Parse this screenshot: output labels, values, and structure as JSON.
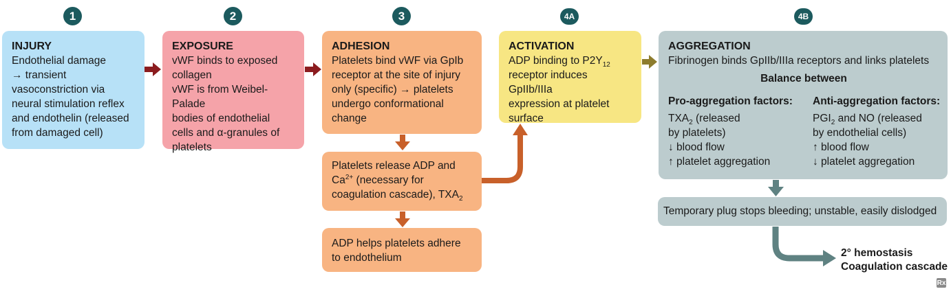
{
  "steps": {
    "s1": "1",
    "s2": "2",
    "s3": "3",
    "s4a": "4A",
    "s4b": "4B"
  },
  "injury": {
    "title": "INJURY",
    "lines": [
      "Endothelial damage",
      "→ transient",
      "vasoconstriction via",
      "neural stimulation reflex",
      "and endothelin (released",
      "from damaged cell)"
    ]
  },
  "exposure": {
    "title": "EXPOSURE",
    "lines": [
      "vWF binds to exposed",
      "collagen",
      "vWF is from Weibel-Palade",
      "bodies of endothelial",
      "cells and α-granules of",
      "platelets"
    ]
  },
  "adhesion": {
    "title": "ADHESION",
    "lines": [
      "Platelets bind vWF via GpIb",
      "receptor at the site of injury",
      "only (specific) → platelets",
      "undergo conformational",
      "change"
    ]
  },
  "release": {
    "line1": "Platelets release ADP and",
    "line2_pre": "Ca",
    "line2_sup": "2+",
    "line2_post": " (necessary for",
    "line3_pre": "coagulation cascade), TXA",
    "line3_sub": "2"
  },
  "adp": {
    "lines": [
      "ADP helps platelets adhere",
      "to endothelium"
    ]
  },
  "activation": {
    "title": "ACTIVATION",
    "line1_pre": "ADP binding to P2Y",
    "line1_sub": "12",
    "line2": "receptor induces GpIIb/IIIa",
    "line3": "expression at platelet",
    "line4": "surface"
  },
  "aggregation": {
    "title": "AGGREGATION",
    "subtitle": "Fibrinogen binds GpIIb/IIIa receptors and links platelets",
    "balance": "Balance between",
    "pro": {
      "heading": "Pro-aggregation factors:",
      "line1_pre": "TXA",
      "line1_sub": "2",
      "line1_post": " (released",
      "line2": "by platelets)",
      "line3": "↓ blood flow",
      "line4": "↑ platelet aggregation"
    },
    "anti": {
      "heading": "Anti-aggregation factors:",
      "line1_pre": "PGI",
      "line1_sub": "2",
      "line1_post": " and NO (released",
      "line2": "by endothelial cells)",
      "line3": "↑ blood flow",
      "line4": "↓ platelet aggregation"
    }
  },
  "plug": {
    "text": "Temporary plug stops bleeding; unstable, easily dislodged"
  },
  "final": {
    "line1": "2° hemostasis",
    "line2": "Coagulation cascade"
  },
  "logo": "Rx",
  "colors": {
    "step_badge": "#1c5a5e",
    "injury": "#b7e1f7",
    "exposure": "#f5a3a9",
    "adhesion": "#f8b482",
    "activation": "#f7e683",
    "aggregation": "#bcccce",
    "arrow_red": "#8b1c1f",
    "arrow_orange": "#c8602a",
    "arrow_olive": "#8d7c2d",
    "arrow_slate": "#5f8282"
  }
}
